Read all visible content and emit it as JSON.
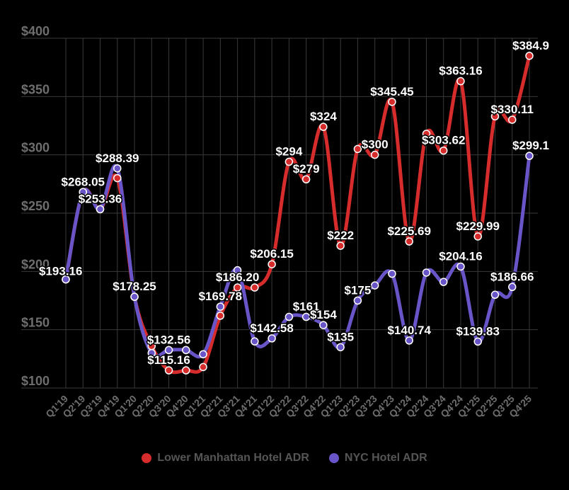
{
  "chart_data": {
    "type": "line",
    "title": "",
    "xlabel": "",
    "ylabel": "",
    "ylim": [
      100,
      400
    ],
    "ytick_labels": [
      "$100",
      "$150",
      "$200",
      "$250",
      "$300",
      "$350",
      "$400"
    ],
    "yticks": [
      100,
      150,
      200,
      250,
      300,
      350,
      400
    ],
    "categories": [
      "Q1'19",
      "Q2'19",
      "Q3'19",
      "Q4'19",
      "Q1'20",
      "Q2'20",
      "Q3'20",
      "Q4'20",
      "Q1'21",
      "Q2'21",
      "Q3'21",
      "Q4'21",
      "Q1'22",
      "Q2'22",
      "Q3'22",
      "Q4'22",
      "Q1'23",
      "Q2'23",
      "Q3'23",
      "Q4'23",
      "Q1'24",
      "Q2'24",
      "Q3'24",
      "Q4'24",
      "Q1'25",
      "Q2'25",
      "Q3'25",
      "Q4'25"
    ],
    "series": [
      {
        "name": "Lower Manhattan Hotel ADR",
        "color": "#d62c2c",
        "values": [
          193.16,
          268.05,
          253.36,
          280,
          178.25,
          136,
          115.16,
          115.16,
          118,
          162,
          186.2,
          186.2,
          206.15,
          294,
          279,
          324,
          222,
          305,
          300,
          345.45,
          225.69,
          318,
          303.62,
          363.16,
          229.99,
          333,
          330.11,
          384.9
        ]
      },
      {
        "name": "NYC Hotel ADR",
        "color": "#6a55c8",
        "values": [
          193.16,
          268.05,
          253.36,
          288.39,
          178.25,
          130,
          132.56,
          132.56,
          129,
          169.78,
          201,
          140,
          142.58,
          161,
          161,
          154,
          135,
          175,
          188,
          198,
          140.74,
          199,
          191,
          204.16,
          139.83,
          180,
          186.66,
          299.1
        ]
      }
    ],
    "data_labels": [
      {
        "series": 1,
        "index": 0,
        "text": "$193.16"
      },
      {
        "series": 1,
        "index": 1,
        "text": "$268.05"
      },
      {
        "series": 1,
        "index": 2,
        "text": "$253.36"
      },
      {
        "series": 1,
        "index": 3,
        "text": "$288.39"
      },
      {
        "series": 1,
        "index": 4,
        "text": "$178.25"
      },
      {
        "series": 1,
        "index": 6,
        "text": "$132.56"
      },
      {
        "series": 0,
        "index": 6,
        "text": "$115.16"
      },
      {
        "series": 1,
        "index": 9,
        "text": "$169.78"
      },
      {
        "series": 0,
        "index": 10,
        "text": "$186.20"
      },
      {
        "series": 1,
        "index": 12,
        "text": "$142.58"
      },
      {
        "series": 0,
        "index": 12,
        "text": "$206.15"
      },
      {
        "series": 0,
        "index": 13,
        "text": "$294"
      },
      {
        "series": 0,
        "index": 14,
        "text": "$279"
      },
      {
        "series": 1,
        "index": 14,
        "text": "$161"
      },
      {
        "series": 0,
        "index": 15,
        "text": "$324"
      },
      {
        "series": 1,
        "index": 15,
        "text": "$154"
      },
      {
        "series": 0,
        "index": 16,
        "text": "$222"
      },
      {
        "series": 1,
        "index": 16,
        "text": "$135"
      },
      {
        "series": 1,
        "index": 17,
        "text": "$175"
      },
      {
        "series": 0,
        "index": 18,
        "text": "$300"
      },
      {
        "series": 0,
        "index": 19,
        "text": "$345.45"
      },
      {
        "series": 0,
        "index": 20,
        "text": "$225.69"
      },
      {
        "series": 1,
        "index": 20,
        "text": "$140.74"
      },
      {
        "series": 0,
        "index": 22,
        "text": "$303.62"
      },
      {
        "series": 0,
        "index": 23,
        "text": "$363.16"
      },
      {
        "series": 1,
        "index": 23,
        "text": "$204.16"
      },
      {
        "series": 0,
        "index": 24,
        "text": "$229.99"
      },
      {
        "series": 1,
        "index": 24,
        "text": "$139.83"
      },
      {
        "series": 0,
        "index": 26,
        "text": "$330.11"
      },
      {
        "series": 1,
        "index": 26,
        "text": "$186.66"
      },
      {
        "series": 0,
        "index": 27,
        "text": "$384.9"
      },
      {
        "series": 1,
        "index": 27,
        "text": "$299.1"
      }
    ],
    "legend": {
      "position": "bottom"
    }
  }
}
